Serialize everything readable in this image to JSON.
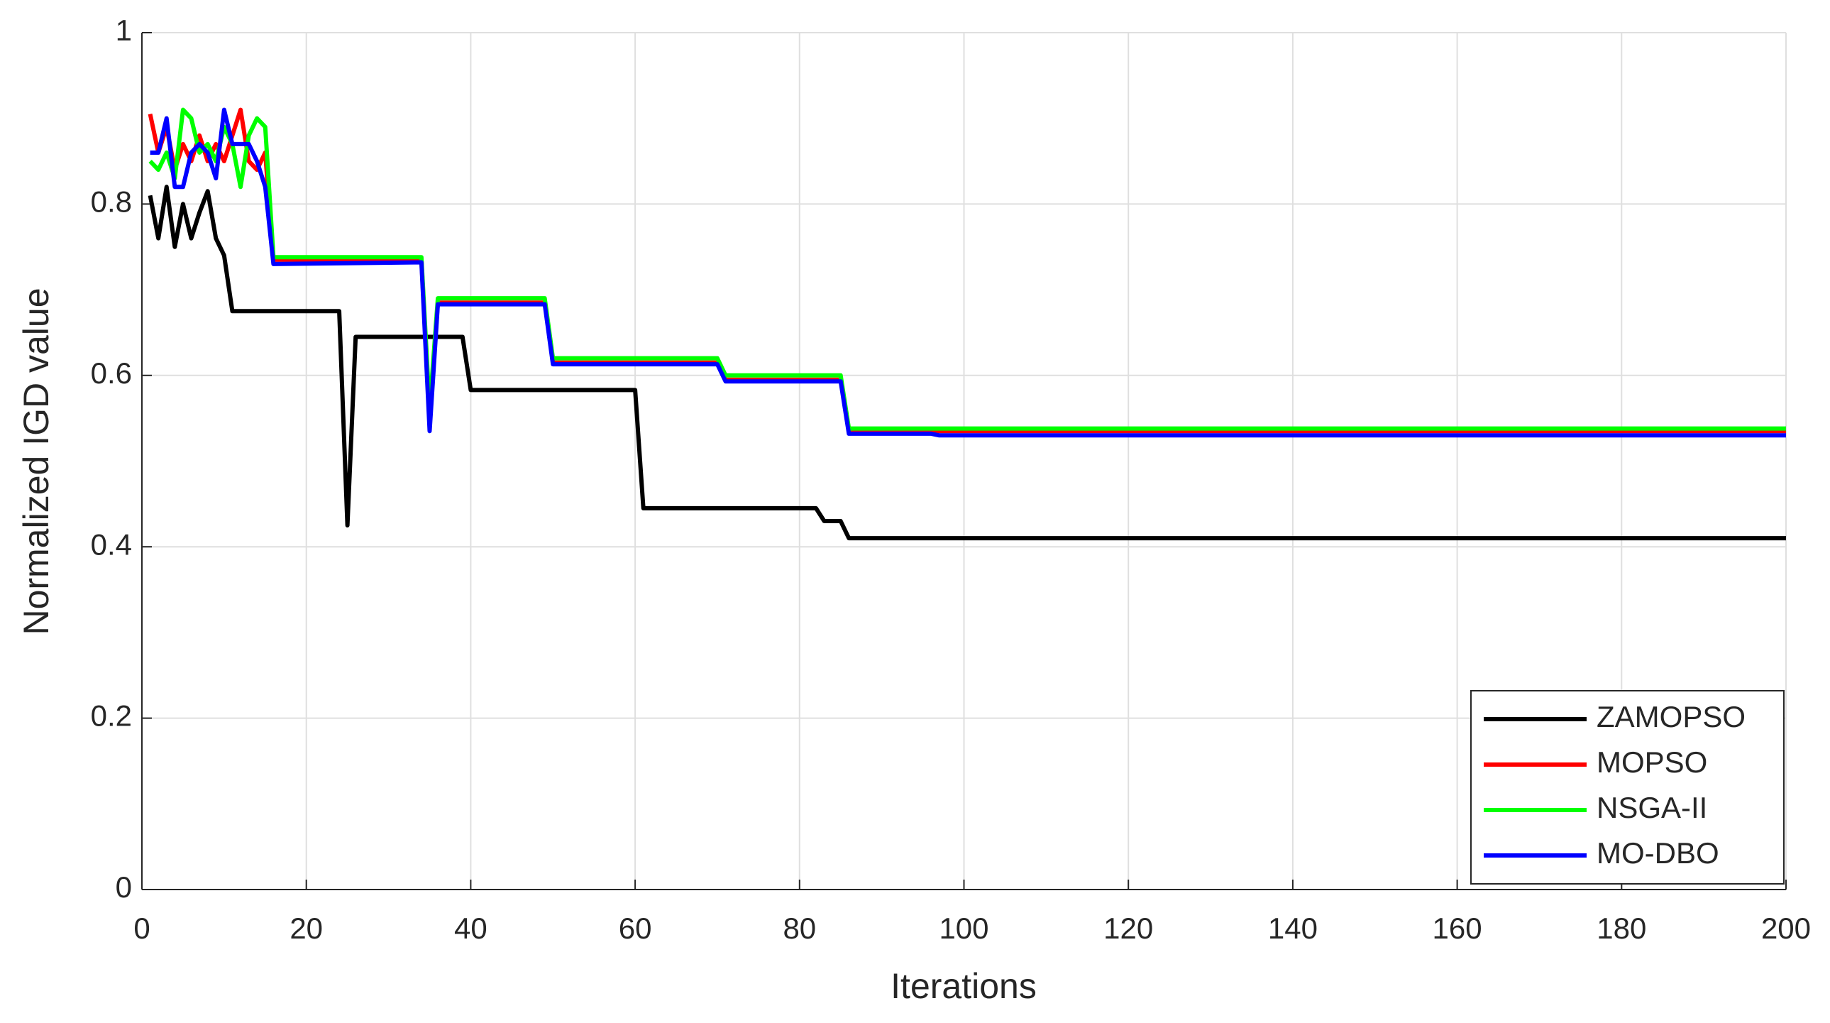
{
  "chart_data": {
    "type": "line",
    "xlabel": "Iterations",
    "ylabel": "Normalized IGD value",
    "xlim": [
      0,
      200
    ],
    "xticks": [
      0,
      20,
      40,
      60,
      80,
      100,
      120,
      140,
      160,
      180,
      200
    ],
    "ylim": [
      0,
      1
    ],
    "yticks": [
      0,
      0.2,
      0.4,
      0.6,
      0.8,
      1
    ],
    "grid": true,
    "legend": "lower right",
    "series": [
      {
        "name": "ZAMOPSO",
        "color": "#000000",
        "x": [
          1,
          2,
          3,
          4,
          5,
          6,
          7,
          8,
          9,
          10,
          11,
          24,
          25,
          26,
          39,
          40,
          60,
          61,
          82,
          83,
          85,
          86,
          200
        ],
        "values": [
          0.81,
          0.76,
          0.82,
          0.75,
          0.8,
          0.76,
          0.79,
          0.815,
          0.76,
          0.74,
          0.675,
          0.675,
          0.425,
          0.645,
          0.645,
          0.583,
          0.583,
          0.445,
          0.445,
          0.43,
          0.43,
          0.41,
          0.41
        ]
      },
      {
        "name": "MOPSO",
        "color": "#ff0000",
        "x": [
          1,
          2,
          3,
          4,
          5,
          6,
          7,
          8,
          9,
          10,
          11,
          12,
          13,
          14,
          15,
          16,
          34,
          35,
          36,
          49,
          50,
          70,
          71,
          85,
          86,
          200
        ],
        "values": [
          0.905,
          0.86,
          0.89,
          0.84,
          0.87,
          0.85,
          0.88,
          0.85,
          0.87,
          0.85,
          0.88,
          0.91,
          0.85,
          0.84,
          0.86,
          0.735,
          0.735,
          0.545,
          0.685,
          0.685,
          0.615,
          0.615,
          0.595,
          0.595,
          0.535,
          0.535
        ]
      },
      {
        "name": "NSGA-II",
        "color": "#00ff00",
        "x": [
          1,
          2,
          3,
          4,
          5,
          6,
          7,
          8,
          9,
          10,
          11,
          12,
          13,
          14,
          15,
          16,
          34,
          35,
          36,
          49,
          50,
          70,
          71,
          85,
          86,
          200
        ],
        "values": [
          0.85,
          0.84,
          0.86,
          0.83,
          0.91,
          0.9,
          0.86,
          0.87,
          0.85,
          0.89,
          0.87,
          0.82,
          0.88,
          0.9,
          0.89,
          0.738,
          0.738,
          0.56,
          0.69,
          0.69,
          0.62,
          0.62,
          0.6,
          0.6,
          0.538,
          0.538
        ]
      },
      {
        "name": "MO-DBO",
        "color": "#0000ff",
        "x": [
          1,
          2,
          3,
          4,
          5,
          6,
          7,
          8,
          9,
          10,
          11,
          12,
          13,
          14,
          15,
          16,
          34,
          35,
          36,
          49,
          50,
          70,
          71,
          85,
          86,
          96,
          97,
          200
        ],
        "values": [
          0.86,
          0.86,
          0.9,
          0.82,
          0.82,
          0.86,
          0.87,
          0.86,
          0.83,
          0.91,
          0.87,
          0.87,
          0.87,
          0.85,
          0.82,
          0.73,
          0.732,
          0.535,
          0.683,
          0.683,
          0.613,
          0.613,
          0.593,
          0.593,
          0.532,
          0.532,
          0.53,
          0.53
        ]
      }
    ]
  }
}
